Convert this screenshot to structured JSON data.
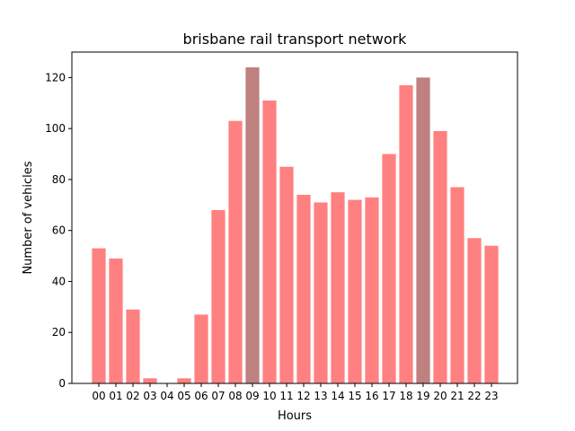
{
  "chart_data": {
    "type": "bar",
    "title": "brisbane rail transport network",
    "xlabel": "Hours",
    "ylabel": "Number of vehicles",
    "categories": [
      "00",
      "01",
      "02",
      "03",
      "04",
      "05",
      "06",
      "07",
      "08",
      "09",
      "10",
      "11",
      "12",
      "13",
      "14",
      "15",
      "16",
      "17",
      "18",
      "19",
      "20",
      "21",
      "22",
      "23"
    ],
    "values": [
      53,
      49,
      29,
      2,
      0,
      2,
      27,
      68,
      103,
      124,
      111,
      85,
      74,
      71,
      75,
      72,
      73,
      90,
      117,
      120,
      99,
      77,
      57,
      54
    ],
    "highlighted": [
      "09",
      "19"
    ],
    "colors": {
      "bar": "#ff8080",
      "highlight": "#bf8080"
    },
    "ylim": [
      0,
      130
    ],
    "yticks": [
      0,
      20,
      40,
      60,
      80,
      100,
      120
    ],
    "grid": false,
    "legend": false
  }
}
